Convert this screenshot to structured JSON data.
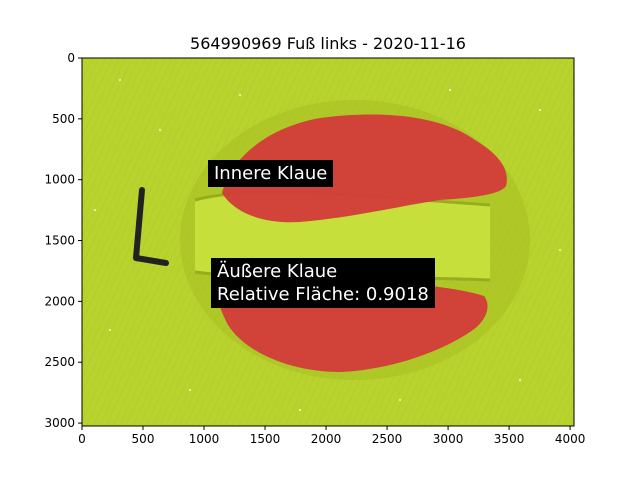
{
  "title": "564990969 Fuß links - 2020-11-16",
  "image_axes": {
    "x_range": [
      0,
      4032
    ],
    "y_range": [
      0,
      3024
    ],
    "y_inverted": true,
    "x_ticks": [
      "0",
      "500",
      "1000",
      "1500",
      "2000",
      "2500",
      "3000",
      "3500",
      "4000"
    ],
    "y_ticks": [
      "0",
      "500",
      "1000",
      "1500",
      "2000",
      "2500",
      "3000"
    ]
  },
  "annotations": {
    "inner": "Innere Klaue",
    "outer_line1": "Äußere Klaue",
    "outer_line2": "Relative Fläche: 0.9018"
  },
  "photo": {
    "background_color": "#b8d22e",
    "mask_color": "#d33b3a",
    "marker_letter": "L"
  }
}
